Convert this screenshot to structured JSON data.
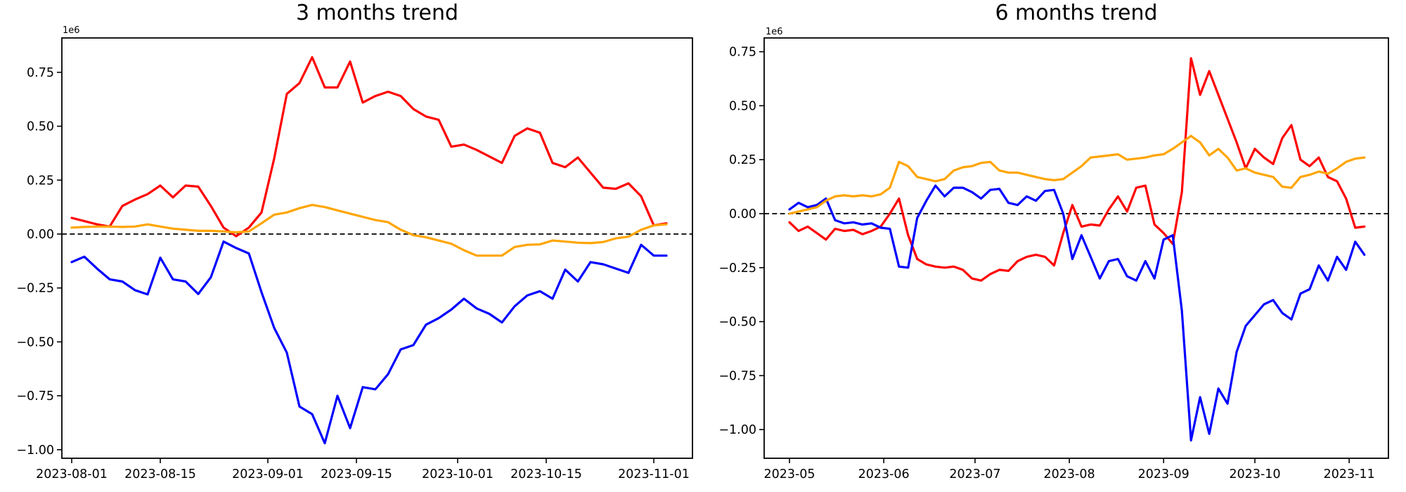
{
  "chart_data": [
    {
      "type": "line",
      "title": "3 months trend",
      "y_axis_offset_label": "1e6",
      "value_scale": 1000000,
      "grid": false,
      "legend": "none",
      "zero_line": {
        "style": "dashed",
        "color": "#000000",
        "y": 0
      },
      "x_start_date": "2023-08-01",
      "x_step_days": 2,
      "x_tick_labels": [
        "2023-08-01",
        "2023-08-15",
        "2023-09-01",
        "2023-09-15",
        "2023-10-01",
        "2023-10-15",
        "2023-11-01"
      ],
      "x_tick_day_offsets": [
        0,
        14,
        31,
        45,
        61,
        75,
        92
      ],
      "y_tick_labels": [
        "0.75",
        "0.50",
        "0.25",
        "0.00",
        "−0.25",
        "−0.50",
        "−0.75",
        "−1.00"
      ],
      "y_tick_values": [
        0.75,
        0.5,
        0.25,
        0,
        -0.25,
        -0.5,
        -0.75,
        -1.0
      ],
      "ylim": [
        -1.06,
        0.92
      ],
      "series": [
        {
          "name": "red-line",
          "color": "#ff0000",
          "values": [
            0.075,
            0.06,
            0.045,
            0.035,
            0.13,
            0.16,
            0.185,
            0.225,
            0.17,
            0.225,
            0.22,
            0.13,
            0.03,
            -0.01,
            0.03,
            0.1,
            0.35,
            0.65,
            0.7,
            0.82,
            0.68,
            0.68,
            0.8,
            0.61,
            0.64,
            0.66,
            0.64,
            0.58,
            0.545,
            0.53,
            0.405,
            0.415,
            0.39,
            0.36,
            0.33,
            0.455,
            0.49,
            0.47,
            0.33,
            0.31,
            0.355,
            0.285,
            0.215,
            0.21,
            0.235,
            0.175,
            0.04,
            0.05
          ]
        },
        {
          "name": "blue-line",
          "color": "#0000ff",
          "values": [
            -0.13,
            -0.105,
            -0.16,
            -0.21,
            -0.22,
            -0.26,
            -0.28,
            -0.11,
            -0.21,
            -0.22,
            -0.278,
            -0.2,
            -0.035,
            -0.065,
            -0.09,
            -0.27,
            -0.435,
            -0.55,
            -0.8,
            -0.835,
            -0.97,
            -0.75,
            -0.9,
            -0.71,
            -0.72,
            -0.65,
            -0.535,
            -0.515,
            -0.42,
            -0.39,
            -0.35,
            -0.3,
            -0.345,
            -0.37,
            -0.41,
            -0.335,
            -0.285,
            -0.265,
            -0.3,
            -0.165,
            -0.22,
            -0.13,
            -0.14,
            -0.16,
            -0.18,
            -0.05,
            -0.1,
            -0.1
          ]
        },
        {
          "name": "orange-line",
          "color": "#ffa500",
          "values": [
            0.03,
            0.033,
            0.035,
            0.035,
            0.033,
            0.035,
            0.045,
            0.035,
            0.025,
            0.02,
            0.015,
            0.015,
            0.012,
            0.008,
            0.012,
            0.05,
            0.09,
            0.1,
            0.12,
            0.135,
            0.125,
            0.11,
            0.095,
            0.08,
            0.065,
            0.055,
            0.02,
            -0.005,
            -0.015,
            -0.03,
            -0.045,
            -0.075,
            -0.1,
            -0.1,
            -0.1,
            -0.06,
            -0.05,
            -0.048,
            -0.03,
            -0.035,
            -0.04,
            -0.042,
            -0.037,
            -0.02,
            -0.012,
            0.02,
            0.04,
            0.045
          ]
        }
      ]
    },
    {
      "type": "line",
      "title": "6 months trend",
      "y_axis_offset_label": "1e6",
      "value_scale": 1000000,
      "grid": false,
      "legend": "none",
      "zero_line": {
        "style": "dashed",
        "color": "#000000",
        "y": 0
      },
      "x_start_date": "2023-05-01",
      "x_step_days": 3,
      "x_tick_labels": [
        "2023-05",
        "2023-06",
        "2023-07",
        "2023-08",
        "2023-09",
        "2023-10",
        "2023-11"
      ],
      "x_tick_day_offsets": [
        0,
        31,
        61,
        92,
        123,
        153,
        184
      ],
      "y_tick_labels": [
        "0.75",
        "0.50",
        "0.25",
        "0.00",
        "−0.25",
        "−0.50",
        "−0.75",
        "−1.00"
      ],
      "y_tick_values": [
        0.75,
        0.5,
        0.25,
        0,
        -0.25,
        -0.5,
        -0.75,
        -1.0
      ],
      "ylim": [
        -1.15,
        0.81
      ],
      "series": [
        {
          "name": "red-line",
          "color": "#ff0000",
          "values": [
            -0.04,
            -0.08,
            -0.06,
            -0.09,
            -0.12,
            -0.07,
            -0.08,
            -0.075,
            -0.095,
            -0.08,
            -0.06,
            0.0,
            0.07,
            -0.1,
            -0.21,
            -0.235,
            -0.245,
            -0.25,
            -0.245,
            -0.26,
            -0.3,
            -0.31,
            -0.28,
            -0.26,
            -0.265,
            -0.22,
            -0.2,
            -0.19,
            -0.2,
            -0.24,
            -0.09,
            0.04,
            -0.06,
            -0.05,
            -0.055,
            0.02,
            0.08,
            0.01,
            0.12,
            0.13,
            -0.05,
            -0.09,
            -0.14,
            0.1,
            0.72,
            0.55,
            0.66,
            0.55,
            0.44,
            0.33,
            0.21,
            0.3,
            0.26,
            0.23,
            0.35,
            0.41,
            0.25,
            0.22,
            0.26,
            0.17,
            0.15,
            0.07,
            -0.065,
            -0.06
          ]
        },
        {
          "name": "blue-line",
          "color": "#0000ff",
          "values": [
            0.02,
            0.05,
            0.03,
            0.04,
            0.07,
            -0.03,
            -0.045,
            -0.04,
            -0.05,
            -0.045,
            -0.065,
            -0.07,
            -0.245,
            -0.25,
            -0.02,
            0.06,
            0.13,
            0.08,
            0.12,
            0.12,
            0.1,
            0.07,
            0.11,
            0.115,
            0.05,
            0.04,
            0.08,
            0.06,
            0.105,
            0.11,
            0.0,
            -0.21,
            -0.1,
            -0.2,
            -0.3,
            -0.22,
            -0.21,
            -0.29,
            -0.31,
            -0.22,
            -0.3,
            -0.12,
            -0.1,
            -0.45,
            -1.05,
            -0.85,
            -1.02,
            -0.81,
            -0.88,
            -0.64,
            -0.52,
            -0.47,
            -0.42,
            -0.4,
            -0.46,
            -0.49,
            -0.37,
            -0.35,
            -0.24,
            -0.31,
            -0.2,
            -0.26,
            -0.13,
            -0.19
          ]
        },
        {
          "name": "orange-line",
          "color": "#ffa500",
          "values": [
            0.0,
            0.01,
            0.02,
            0.03,
            0.06,
            0.08,
            0.085,
            0.08,
            0.085,
            0.08,
            0.09,
            0.12,
            0.24,
            0.22,
            0.17,
            0.16,
            0.15,
            0.16,
            0.2,
            0.215,
            0.22,
            0.235,
            0.24,
            0.2,
            0.19,
            0.19,
            0.18,
            0.17,
            0.16,
            0.155,
            0.16,
            0.19,
            0.22,
            0.26,
            0.265,
            0.27,
            0.275,
            0.25,
            0.255,
            0.26,
            0.27,
            0.275,
            0.3,
            0.33,
            0.36,
            0.33,
            0.27,
            0.3,
            0.26,
            0.2,
            0.21,
            0.19,
            0.18,
            0.17,
            0.125,
            0.12,
            0.17,
            0.18,
            0.195,
            0.185,
            0.21,
            0.24,
            0.255,
            0.26
          ]
        }
      ]
    }
  ]
}
